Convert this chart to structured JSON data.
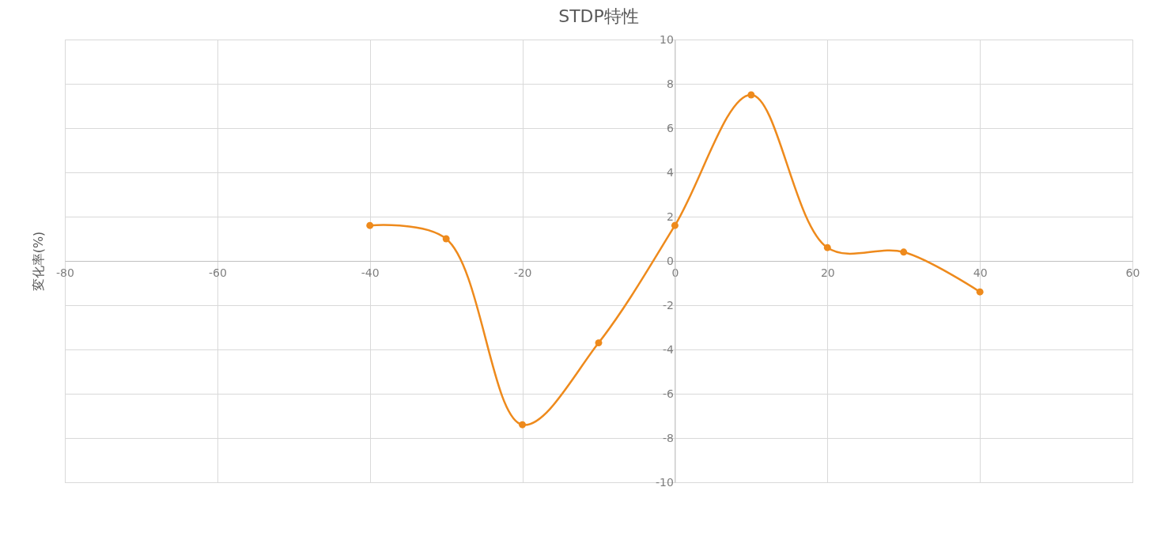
{
  "chart_data": {
    "type": "line",
    "title": "STDP特性",
    "ylabel": "変化率(%)",
    "x": [
      -40,
      -30,
      -20,
      -10,
      0,
      10,
      20,
      30,
      40
    ],
    "series": [
      {
        "color": "#ee8a1c",
        "values": [
          1.6,
          1.0,
          -7.4,
          -3.7,
          1.6,
          7.5,
          0.6,
          0.4,
          -1.4
        ]
      }
    ],
    "xlim": [
      -80,
      60
    ],
    "xticks": [
      -80,
      -60,
      -40,
      -20,
      0,
      20,
      40,
      60
    ],
    "ylim": [
      -10,
      10
    ],
    "yticks": [
      -10,
      -8,
      -6,
      -4,
      -2,
      0,
      2,
      4,
      6,
      8,
      10
    ],
    "grid": true,
    "marker": "circle",
    "line_style": "solid"
  }
}
